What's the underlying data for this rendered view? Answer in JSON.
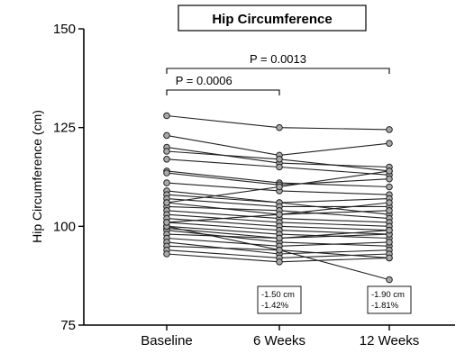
{
  "chart_data": {
    "type": "line",
    "title": "Hip Circumference",
    "ylabel": "Hip Circumference (cm)",
    "xlabel": "",
    "categories": [
      "Baseline",
      "6 Weeks",
      "12 Weeks"
    ],
    "ylim": [
      75,
      150
    ],
    "yticks": [
      75,
      100,
      125,
      150
    ],
    "grid": false,
    "marker_color": "#a9a9a9",
    "line_color": "#222222",
    "series": [
      {
        "values": [
          128,
          125,
          124.5
        ]
      },
      {
        "values": [
          123,
          118,
          121
        ]
      },
      {
        "values": [
          120,
          116,
          115
        ]
      },
      {
        "values": [
          119,
          117,
          114
        ]
      },
      {
        "values": [
          117,
          115,
          113
        ]
      },
      {
        "values": [
          114,
          111,
          110
        ]
      },
      {
        "values": [
          113.5,
          110.5,
          112
        ]
      },
      {
        "values": [
          111,
          109,
          108
        ]
      },
      {
        "values": [
          109,
          106,
          107
        ]
      },
      {
        "values": [
          108,
          106,
          103
        ]
      },
      {
        "values": [
          107,
          105,
          105
        ]
      },
      {
        "values": [
          106,
          103,
          104
        ]
      },
      {
        "values": [
          105,
          104,
          102
        ]
      },
      {
        "values": [
          104,
          102,
          101
        ]
      },
      {
        "values": [
          103,
          101,
          100
        ]
      },
      {
        "values": [
          102,
          100,
          99
        ]
      },
      {
        "values": [
          101,
          99,
          98
        ]
      },
      {
        "values": [
          100,
          98,
          97
        ]
      },
      {
        "values": [
          99.5,
          97,
          98
        ]
      },
      {
        "values": [
          99,
          96,
          95
        ]
      },
      {
        "values": [
          98,
          97,
          99
        ]
      },
      {
        "values": [
          97,
          95,
          96
        ]
      },
      {
        "values": [
          96,
          93,
          94
        ]
      },
      {
        "values": [
          95,
          94,
          92
        ]
      },
      {
        "values": [
          94,
          92,
          93
        ]
      },
      {
        "values": [
          93,
          91,
          92
        ]
      },
      {
        "values": [
          100,
          94,
          86.5
        ]
      },
      {
        "values": [
          106,
          110,
          114
        ]
      },
      {
        "values": [
          101,
          103,
          106
        ]
      }
    ],
    "comparisons": [
      {
        "from": "Baseline",
        "to": "6 Weeks",
        "label": "P = 0.0006"
      },
      {
        "from": "Baseline",
        "to": "12 Weeks",
        "label": "P = 0.0013"
      }
    ],
    "annotations": [
      {
        "category": "6 Weeks",
        "lines": [
          "-1.50 cm",
          "-1.42%"
        ]
      },
      {
        "category": "12 Weeks",
        "lines": [
          "-1.90 cm",
          "-1.81%"
        ]
      }
    ]
  }
}
